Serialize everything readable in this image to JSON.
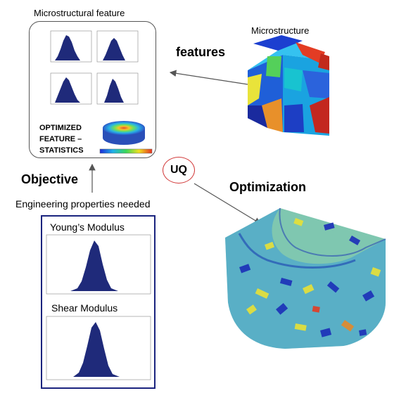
{
  "title": "Microstructural feature",
  "microstructure": {
    "label": "Microstructure"
  },
  "features_arrow": {
    "label": "features"
  },
  "objective": {
    "label": "Objective"
  },
  "engineering": {
    "label": "Engineering properties needed"
  },
  "optimization": {
    "label": "Optimization"
  },
  "uq": {
    "label": "UQ"
  },
  "optimized_stats": {
    "line1": "OPTIMIZED",
    "line2": "FEATURE –",
    "line3": "STATISTICS"
  },
  "young": {
    "label": "Young’s Modulus"
  },
  "shear": {
    "label": "Shear Modulus"
  },
  "colors": {
    "histogram": "#1f2a7a",
    "uq_circle": "#d23a3a",
    "box_border": "#1a237e"
  }
}
